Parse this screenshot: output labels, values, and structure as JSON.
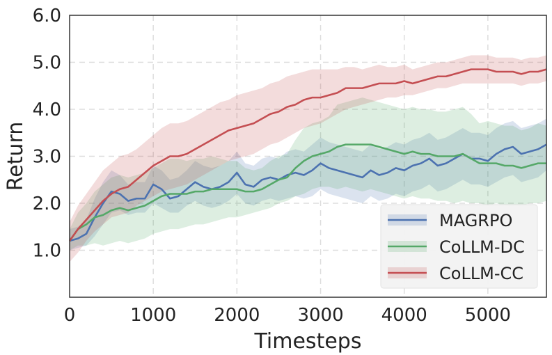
{
  "chart_data": {
    "type": "line",
    "xlabel": "Timesteps",
    "ylabel": "Return",
    "xlim": [
      0,
      5700
    ],
    "ylim": [
      0.0,
      6.0
    ],
    "x_ticks": [
      0,
      1000,
      2000,
      3000,
      4000,
      5000
    ],
    "y_ticks": [
      1.0,
      2.0,
      3.0,
      4.0,
      5.0,
      6.0
    ],
    "x_tick_labels": [
      "0",
      "1000",
      "2000",
      "3000",
      "4000",
      "5000"
    ],
    "y_tick_labels": [
      "1.0",
      "2.0",
      "3.0",
      "4.0",
      "5.0",
      "6.0"
    ],
    "grid": true,
    "legend_position": "bottom-right",
    "series": [
      {
        "name": "MAGRPO",
        "color": "#4c72b0",
        "x": [
          0,
          100,
          200,
          300,
          400,
          500,
          600,
          700,
          800,
          900,
          1000,
          1100,
          1200,
          1300,
          1400,
          1500,
          1600,
          1700,
          1800,
          1900,
          2000,
          2100,
          2200,
          2300,
          2400,
          2500,
          2600,
          2700,
          2800,
          2900,
          3000,
          3100,
          3200,
          3300,
          3400,
          3500,
          3600,
          3700,
          3800,
          3900,
          4000,
          4100,
          4200,
          4300,
          4400,
          4500,
          4600,
          4700,
          4800,
          4900,
          5000,
          5100,
          5200,
          5300,
          5400,
          5500,
          5600,
          5700
        ],
        "values": [
          1.2,
          1.25,
          1.35,
          1.7,
          2.0,
          2.25,
          2.2,
          2.05,
          2.1,
          2.1,
          2.4,
          2.3,
          2.1,
          2.15,
          2.3,
          2.45,
          2.35,
          2.3,
          2.35,
          2.45,
          2.65,
          2.4,
          2.35,
          2.5,
          2.55,
          2.5,
          2.6,
          2.65,
          2.6,
          2.7,
          2.85,
          2.75,
          2.7,
          2.65,
          2.6,
          2.55,
          2.7,
          2.6,
          2.65,
          2.75,
          2.7,
          2.8,
          2.85,
          2.95,
          2.8,
          2.85,
          2.95,
          3.05,
          2.95,
          2.95,
          2.9,
          3.05,
          3.15,
          3.2,
          3.05,
          3.1,
          3.15,
          3.25
        ],
        "lower": [
          1.0,
          1.05,
          1.1,
          1.3,
          1.55,
          1.8,
          1.85,
          1.75,
          1.8,
          1.8,
          2.0,
          1.9,
          1.8,
          1.8,
          1.95,
          2.05,
          1.95,
          1.9,
          1.95,
          2.05,
          2.2,
          2.0,
          1.95,
          2.05,
          2.1,
          2.05,
          2.1,
          2.15,
          2.1,
          2.15,
          2.3,
          2.2,
          2.15,
          2.1,
          2.05,
          2.0,
          2.15,
          2.05,
          2.1,
          2.2,
          2.15,
          2.25,
          2.3,
          2.4,
          2.25,
          2.3,
          2.4,
          2.5,
          2.4,
          2.4,
          2.35,
          2.45,
          2.55,
          2.6,
          2.45,
          2.5,
          2.55,
          2.7
        ],
        "upper": [
          1.45,
          1.5,
          1.65,
          2.1,
          2.45,
          2.7,
          2.6,
          2.4,
          2.45,
          2.45,
          2.8,
          2.7,
          2.5,
          2.55,
          2.7,
          2.9,
          2.8,
          2.75,
          2.8,
          2.9,
          3.1,
          2.85,
          2.8,
          2.95,
          3.0,
          2.95,
          3.1,
          3.15,
          3.1,
          3.25,
          3.4,
          3.3,
          3.25,
          3.2,
          3.15,
          3.1,
          3.25,
          3.15,
          3.2,
          3.3,
          3.25,
          3.35,
          3.4,
          3.5,
          3.35,
          3.4,
          3.5,
          3.6,
          3.5,
          3.5,
          3.45,
          3.6,
          3.7,
          3.75,
          3.6,
          3.65,
          3.7,
          3.8
        ]
      },
      {
        "name": "CoLLM-DC",
        "color": "#55a868",
        "x": [
          0,
          100,
          200,
          300,
          400,
          500,
          600,
          700,
          800,
          900,
          1000,
          1100,
          1200,
          1300,
          1400,
          1500,
          1600,
          1700,
          1800,
          1900,
          2000,
          2100,
          2200,
          2300,
          2400,
          2500,
          2600,
          2700,
          2800,
          2900,
          3000,
          3100,
          3200,
          3300,
          3400,
          3500,
          3600,
          3700,
          3800,
          3900,
          4000,
          4100,
          4200,
          4300,
          4400,
          4500,
          4600,
          4700,
          4800,
          4900,
          5000,
          5100,
          5200,
          5300,
          5400,
          5500,
          5600,
          5700
        ],
        "values": [
          1.2,
          1.45,
          1.55,
          1.7,
          1.75,
          1.85,
          1.9,
          1.85,
          1.9,
          1.95,
          2.05,
          2.15,
          2.2,
          2.2,
          2.2,
          2.25,
          2.25,
          2.3,
          2.3,
          2.3,
          2.3,
          2.25,
          2.25,
          2.3,
          2.4,
          2.5,
          2.55,
          2.75,
          2.9,
          3.0,
          3.05,
          3.1,
          3.2,
          3.25,
          3.25,
          3.25,
          3.25,
          3.2,
          3.15,
          3.1,
          3.05,
          3.1,
          3.05,
          3.05,
          3.0,
          3.0,
          3.0,
          3.05,
          2.95,
          2.85,
          2.85,
          2.85,
          2.8,
          2.8,
          2.75,
          2.8,
          2.85,
          2.85
        ],
        "lower": [
          1.0,
          1.1,
          1.1,
          1.15,
          1.1,
          1.15,
          1.2,
          1.15,
          1.2,
          1.25,
          1.35,
          1.4,
          1.45,
          1.45,
          1.5,
          1.55,
          1.55,
          1.6,
          1.65,
          1.7,
          1.7,
          1.75,
          1.8,
          1.85,
          1.9,
          2.0,
          2.05,
          2.15,
          2.2,
          2.3,
          2.35,
          2.35,
          2.3,
          2.35,
          2.3,
          2.25,
          2.3,
          2.25,
          2.2,
          2.15,
          2.1,
          2.15,
          2.1,
          2.1,
          2.05,
          2.05,
          2.0,
          2.05,
          2.0,
          2.0,
          1.95,
          2.0,
          1.95,
          1.95,
          1.95,
          2.0,
          2.0,
          2.05
        ],
        "upper": [
          1.45,
          1.8,
          2.0,
          2.25,
          2.4,
          2.55,
          2.6,
          2.55,
          2.6,
          2.65,
          2.75,
          2.85,
          2.95,
          2.95,
          2.9,
          2.95,
          2.95,
          3.0,
          2.95,
          2.9,
          2.9,
          2.75,
          2.7,
          2.75,
          2.9,
          3.0,
          3.05,
          3.35,
          3.6,
          3.7,
          3.75,
          3.85,
          4.1,
          4.15,
          4.2,
          4.25,
          4.2,
          4.15,
          4.1,
          4.05,
          4.0,
          4.05,
          4.0,
          4.0,
          3.95,
          3.95,
          4.0,
          4.05,
          3.9,
          3.7,
          3.75,
          3.7,
          3.65,
          3.65,
          3.55,
          3.6,
          3.7,
          3.65
        ]
      },
      {
        "name": "CoLLM-CC",
        "color": "#c44e52",
        "x": [
          0,
          100,
          200,
          300,
          400,
          500,
          600,
          700,
          800,
          900,
          1000,
          1100,
          1200,
          1300,
          1400,
          1500,
          1600,
          1700,
          1800,
          1900,
          2000,
          2100,
          2200,
          2300,
          2400,
          2500,
          2600,
          2700,
          2800,
          2900,
          3000,
          3100,
          3200,
          3300,
          3400,
          3500,
          3600,
          3700,
          3800,
          3900,
          4000,
          4100,
          4200,
          4300,
          4400,
          4500,
          4600,
          4700,
          4800,
          4900,
          5000,
          5100,
          5200,
          5300,
          5400,
          5500,
          5600,
          5700
        ],
        "values": [
          1.2,
          1.45,
          1.65,
          1.85,
          2.05,
          2.2,
          2.3,
          2.35,
          2.5,
          2.65,
          2.8,
          2.9,
          3.0,
          3.0,
          3.05,
          3.15,
          3.25,
          3.35,
          3.45,
          3.55,
          3.6,
          3.65,
          3.7,
          3.8,
          3.9,
          3.95,
          4.05,
          4.1,
          4.2,
          4.25,
          4.25,
          4.3,
          4.35,
          4.45,
          4.45,
          4.45,
          4.5,
          4.55,
          4.55,
          4.55,
          4.6,
          4.55,
          4.6,
          4.65,
          4.7,
          4.7,
          4.75,
          4.8,
          4.85,
          4.85,
          4.85,
          4.8,
          4.8,
          4.8,
          4.75,
          4.8,
          4.8,
          4.85
        ],
        "lower": [
          0.75,
          0.95,
          1.2,
          1.4,
          1.55,
          1.7,
          1.75,
          1.8,
          1.95,
          2.05,
          2.15,
          2.25,
          2.3,
          2.35,
          2.4,
          2.5,
          2.6,
          2.7,
          2.8,
          2.9,
          2.95,
          3.0,
          3.05,
          3.15,
          3.25,
          3.3,
          3.4,
          3.5,
          3.6,
          3.65,
          3.7,
          3.8,
          3.9,
          4.0,
          4.05,
          4.1,
          4.15,
          4.2,
          4.25,
          4.25,
          4.3,
          4.3,
          4.35,
          4.4,
          4.45,
          4.45,
          4.5,
          4.55,
          4.55,
          4.55,
          4.55,
          4.55,
          4.55,
          4.55,
          4.5,
          4.55,
          4.55,
          4.6
        ],
        "upper": [
          1.6,
          1.95,
          2.2,
          2.45,
          2.7,
          2.85,
          3.0,
          3.05,
          3.15,
          3.3,
          3.45,
          3.6,
          3.7,
          3.7,
          3.75,
          3.85,
          3.95,
          4.05,
          4.15,
          4.2,
          4.3,
          4.35,
          4.4,
          4.45,
          4.55,
          4.6,
          4.7,
          4.75,
          4.8,
          4.85,
          4.85,
          4.85,
          4.85,
          4.9,
          4.9,
          4.85,
          4.9,
          4.95,
          4.9,
          4.9,
          4.95,
          4.85,
          4.9,
          4.95,
          5.0,
          5.0,
          5.05,
          5.1,
          5.15,
          5.15,
          5.15,
          5.1,
          5.1,
          5.1,
          5.05,
          5.1,
          5.1,
          5.15
        ]
      }
    ]
  }
}
